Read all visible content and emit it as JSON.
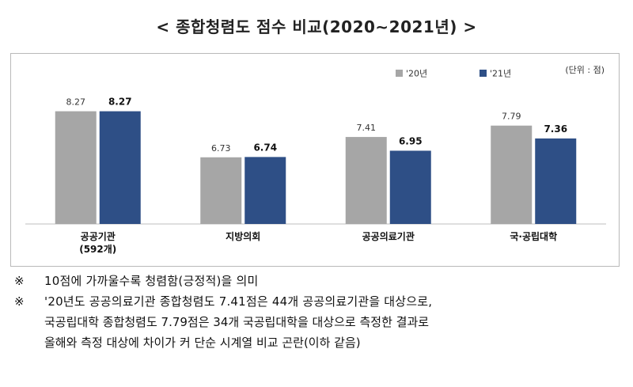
{
  "title": "< 종합청렴도 점수 비교(2020∼2021년) >",
  "chart_data": {
    "type": "bar",
    "categories": [
      "공공기관\n(592개)",
      "지방의회",
      "공공의료기관",
      "국·공립대학"
    ],
    "series": [
      {
        "name": "'20년",
        "values": [
          8.27,
          6.73,
          7.41,
          7.79
        ],
        "color": "#a6a6a6"
      },
      {
        "name": "'21년",
        "values": [
          8.27,
          6.74,
          6.95,
          7.36
        ],
        "color": "#2e4f86"
      }
    ],
    "value_labels": [
      [
        "8.27",
        "6.73",
        "7.41",
        "7.79"
      ],
      [
        "8.27",
        "6.74",
        "6.95",
        "7.36"
      ]
    ],
    "unit_label": "(단위 : 점)",
    "ylim": [
      4.5,
      9
    ],
    "legend": "top-right"
  },
  "notes": {
    "mark": "※",
    "note1": "10점에 가까울수록 청렴함(긍정적)을 의미",
    "note2_line1": "'20년도 공공의료기관 종합청렴도 7.41점은 44개 공공의료기관을 대상으로,",
    "note2_line2": "국공립대학 종합청렴도 7.79점은 34개 국공립대학을 대상으로 측정한 결과로",
    "note2_line3": "올해와 측정 대상에 차이가 커 단순 시계열 비교 곤란(이하 같음)"
  }
}
